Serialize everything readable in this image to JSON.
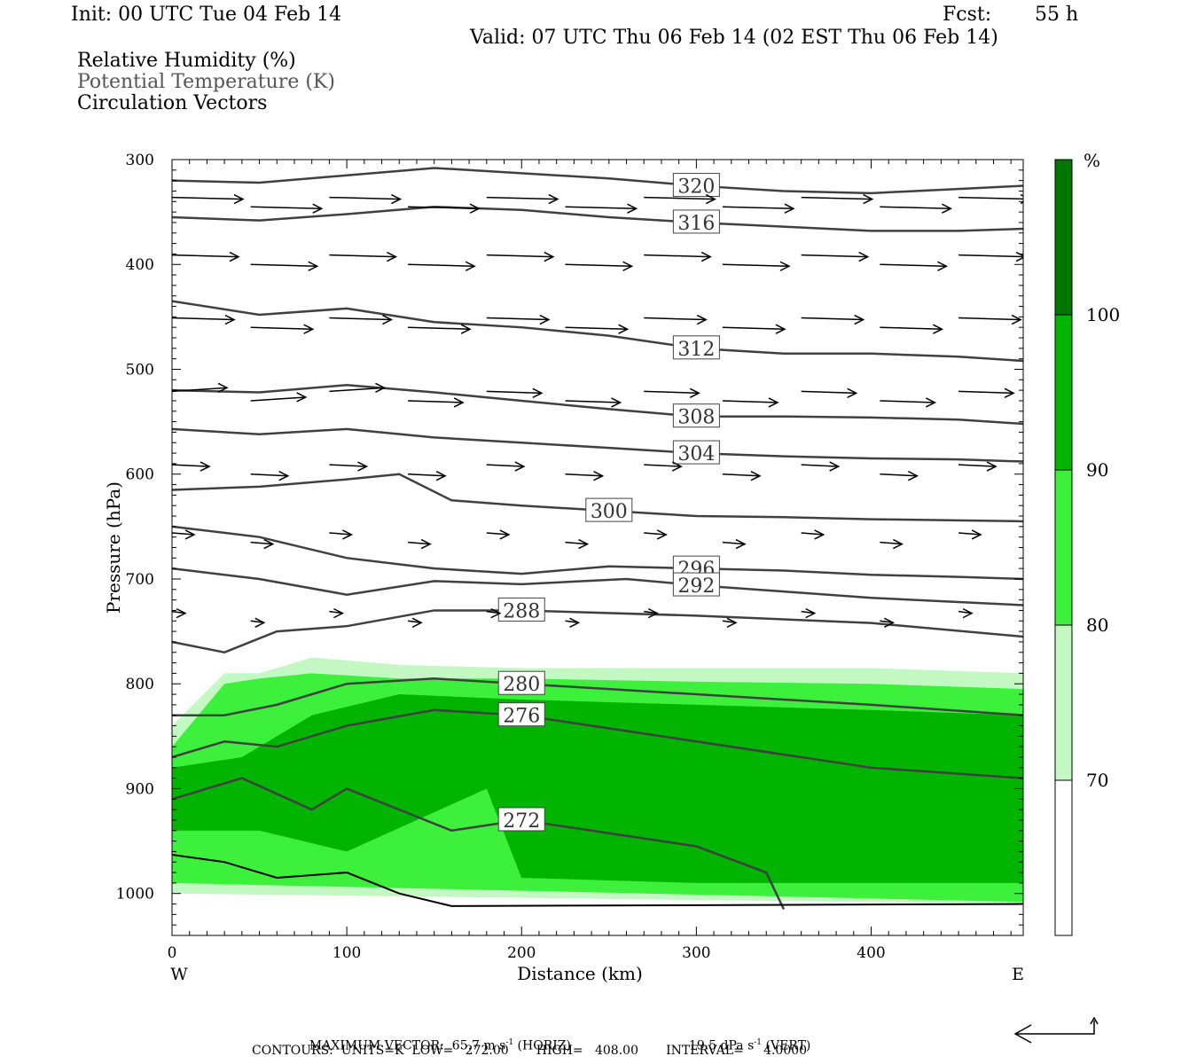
{
  "header": {
    "init": "Init: 00 UTC Tue 04 Feb 14",
    "fcst_label": "Fcst:",
    "fcst_value": "55 h",
    "valid": "Valid: 07 UTC Thu 06 Feb 14 (02 EST Thu 06 Feb 14)"
  },
  "legend_text": {
    "line1": "Relative Humidity (%)",
    "line2": "Potential Temperature (K)",
    "line3": "Circulation Vectors"
  },
  "footer": {
    "max_vector": "MAXIMUM VECTOR:  65.7 m s",
    "horiz_exp": "-1",
    "horiz_tail": " (HORIZ)",
    "vert_value": "19.5 dPa s",
    "vert_exp": "-1",
    "vert_tail": " (VERT)",
    "contours": "CONTOURS:  UNITS=K  LOW=   272.00       HIGH=   408.00       INTERVAL=     4.0000"
  },
  "colors": {
    "rh_70": "#c3f8c3",
    "rh_80": "#3cf03c",
    "rh_90": "#00b400",
    "rh_100": "#007800",
    "theta_line": "#404040"
  },
  "chart_data": {
    "type": "heatmap",
    "title": "",
    "xlabel": "Distance (km)",
    "ylabel": "Pressure (hPa)",
    "x_range": [
      0,
      487
    ],
    "y_range": [
      1040,
      300
    ],
    "y_scale": "linear (inverted)",
    "x_ticks": [
      0,
      100,
      200,
      300,
      400
    ],
    "y_ticks": [
      300,
      400,
      500,
      600,
      700,
      800,
      900,
      1000
    ],
    "x_end_labels": {
      "left": "W",
      "right": "E"
    },
    "colorbar": {
      "unit": "%",
      "levels": [
        70,
        80,
        90,
        100
      ],
      "label_70": "70",
      "label_80": "80",
      "label_90": "90",
      "label_100": "100"
    },
    "rh_fill": [
      {
        "level": 70,
        "x": [
          0,
          30,
          50,
          80,
          130,
          200,
          300,
          400,
          487,
          487,
          0
        ],
        "p": [
          840,
          790,
          790,
          775,
          782,
          785,
          785,
          785,
          790,
          1010,
          1000
        ]
      },
      {
        "level": 80,
        "x": [
          0,
          30,
          50,
          80,
          130,
          200,
          300,
          400,
          487,
          487,
          0
        ],
        "p": [
          860,
          800,
          795,
          790,
          795,
          795,
          798,
          800,
          805,
          1008,
          990
        ]
      },
      {
        "level": 90,
        "x": [
          0,
          40,
          80,
          130,
          200,
          300,
          400,
          487,
          487,
          300,
          200,
          180,
          100,
          50,
          0
        ],
        "p": [
          880,
          870,
          830,
          810,
          815,
          820,
          825,
          830,
          990,
          990,
          985,
          900,
          960,
          940,
          940
        ]
      }
    ],
    "theta_contours": [
      {
        "label": "320",
        "x": [
          0,
          50,
          100,
          150,
          200,
          250,
          300,
          350,
          400,
          450,
          487
        ],
        "p": [
          320,
          322,
          315,
          308,
          313,
          318,
          325,
          330,
          332,
          328,
          325
        ]
      },
      {
        "label": "316",
        "x": [
          0,
          50,
          100,
          150,
          200,
          250,
          300,
          350,
          400,
          450,
          487
        ],
        "p": [
          355,
          358,
          352,
          345,
          348,
          355,
          360,
          364,
          368,
          368,
          366
        ]
      },
      {
        "label": "312",
        "x": [
          0,
          50,
          100,
          150,
          200,
          250,
          300,
          350,
          400,
          450,
          487
        ],
        "p": [
          435,
          448,
          442,
          455,
          460,
          468,
          480,
          485,
          485,
          488,
          492
        ]
      },
      {
        "label": "308",
        "x": [
          0,
          50,
          100,
          150,
          200,
          250,
          300,
          350,
          400,
          450,
          487
        ],
        "p": [
          520,
          522,
          515,
          522,
          530,
          538,
          545,
          545,
          546,
          548,
          552
        ]
      },
      {
        "label": "304",
        "x": [
          0,
          50,
          100,
          150,
          200,
          250,
          300,
          350,
          400,
          450,
          487
        ],
        "p": [
          557,
          562,
          557,
          565,
          570,
          575,
          580,
          583,
          585,
          586,
          588
        ]
      },
      {
        "label": "300",
        "x": [
          0,
          50,
          100,
          130,
          160,
          200,
          250,
          300,
          350,
          400,
          487
        ],
        "p": [
          615,
          612,
          605,
          600,
          625,
          630,
          635,
          640,
          641,
          643,
          645
        ]
      },
      {
        "label": "296",
        "x": [
          0,
          50,
          100,
          150,
          200,
          250,
          300,
          350,
          400,
          450,
          487
        ],
        "p": [
          650,
          660,
          680,
          690,
          695,
          688,
          690,
          692,
          696,
          698,
          700
        ]
      },
      {
        "label": "292",
        "x": [
          0,
          50,
          100,
          150,
          200,
          260,
          300,
          350,
          400,
          450,
          487
        ],
        "p": [
          690,
          700,
          715,
          702,
          705,
          700,
          706,
          712,
          718,
          722,
          725
        ]
      },
      {
        "label": "288",
        "x": [
          0,
          30,
          60,
          100,
          150,
          200,
          300,
          400,
          487
        ],
        "p": [
          760,
          770,
          750,
          745,
          730,
          730,
          735,
          742,
          755
        ]
      },
      {
        "label": "280",
        "x": [
          0,
          30,
          60,
          100,
          150,
          200,
          300,
          400,
          487
        ],
        "p": [
          830,
          830,
          820,
          800,
          795,
          800,
          810,
          820,
          830
        ]
      },
      {
        "label": "276",
        "x": [
          0,
          30,
          60,
          100,
          150,
          200,
          300,
          400,
          487
        ],
        "p": [
          870,
          855,
          860,
          840,
          825,
          830,
          855,
          880,
          890
        ]
      },
      {
        "label": "272",
        "x": [
          0,
          40,
          80,
          100,
          130,
          160,
          200,
          300,
          340,
          350
        ],
        "p": [
          910,
          890,
          920,
          900,
          920,
          940,
          930,
          955,
          980,
          1015
        ]
      }
    ],
    "vectors_note": "circulation vectors shown as arrows",
    "max_vector_horiz": "65.7 m s-1",
    "max_vector_vert": "19.5 dPa s-1"
  }
}
